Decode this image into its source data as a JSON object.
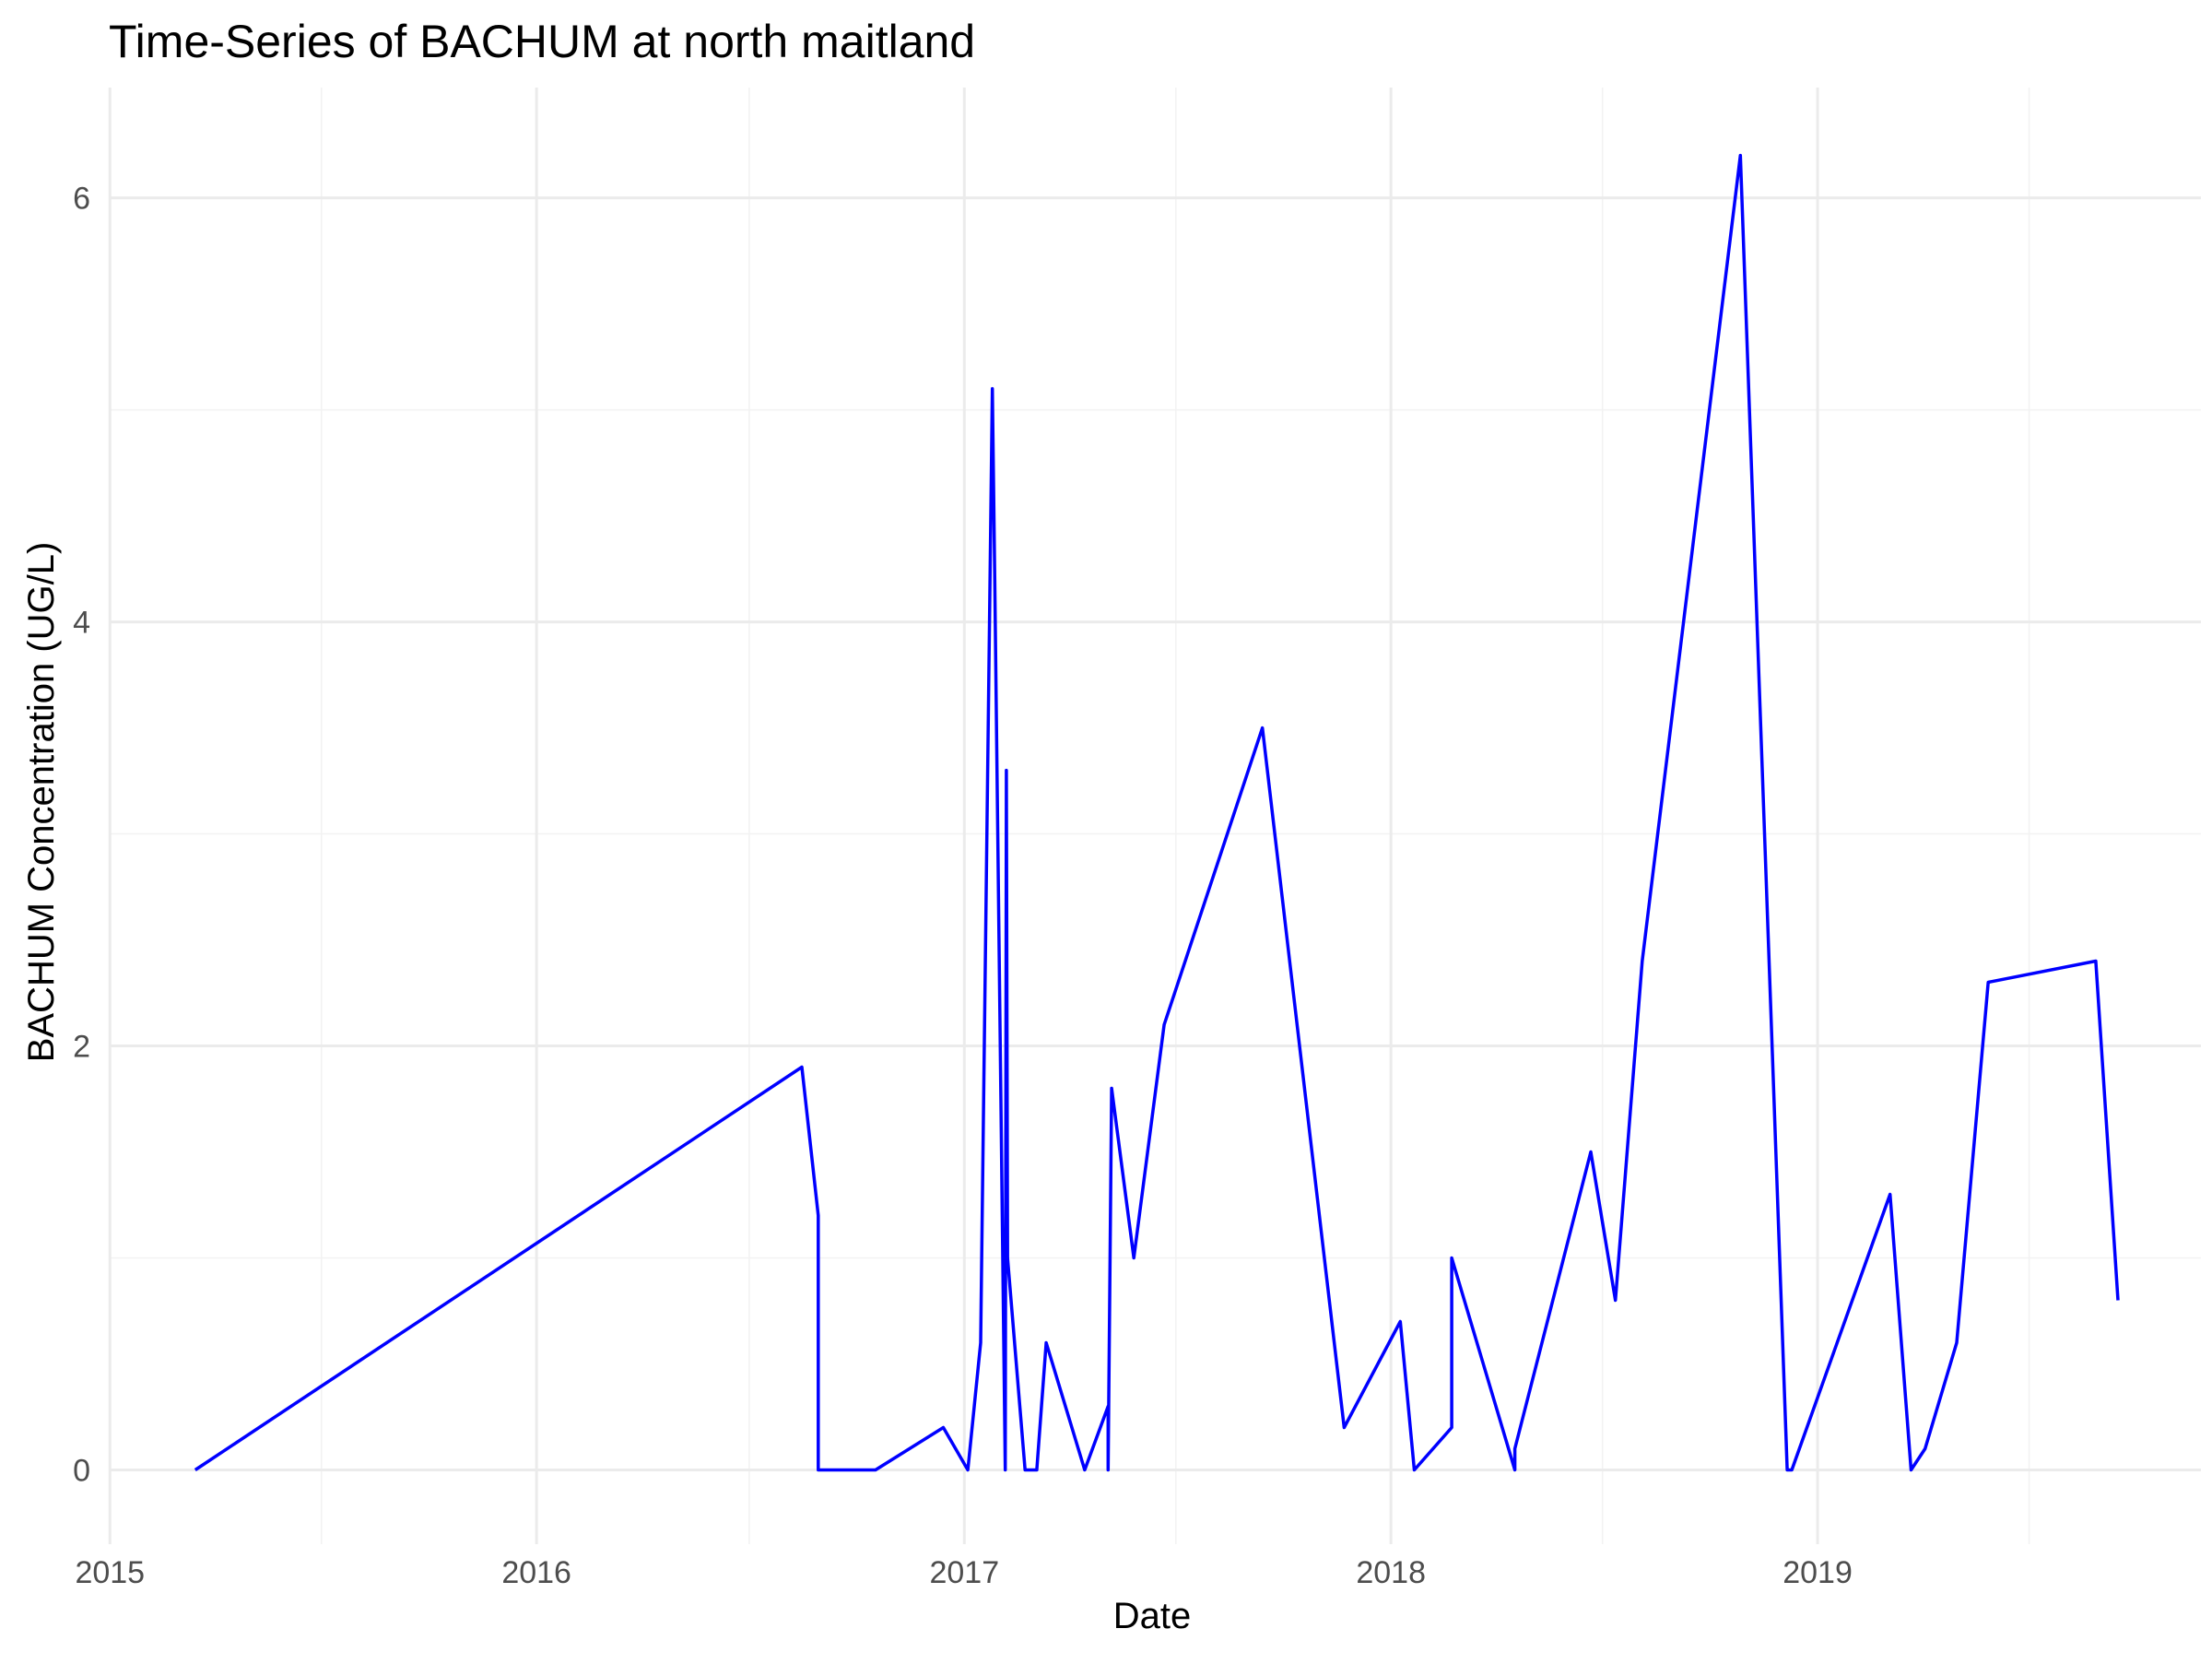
{
  "chart_data": {
    "type": "line",
    "title": "Time-Series of BACHUM at north maitland",
    "xlabel": "Date",
    "ylabel": "BACHUM Concentration (UG/L)",
    "x_ticks": [
      "2015",
      "2016",
      "2017",
      "2018",
      "2019"
    ],
    "y_ticks": [
      "0",
      "2",
      "4",
      "6"
    ],
    "xlim": [
      "2014-12-31",
      "2019-11-25"
    ],
    "ylim": [
      -0.35,
      6.52
    ],
    "grid": true,
    "series_color": "#0000ff",
    "series": [
      {
        "x": [
          "2015-03-15",
          "2016-08-15",
          "2016-08-29",
          "2016-08-29",
          "2016-10-17",
          "2016-12-14",
          "2017-01-04",
          "2017-01-15",
          "2017-01-25",
          "2017-01-27",
          "2017-02-05",
          "2017-02-06",
          "2017-02-07",
          "2017-02-22",
          "2017-03-04",
          "2017-03-12",
          "2017-04-14",
          "2017-05-04",
          "2017-05-04",
          "2017-05-07",
          "2017-05-26",
          "2017-06-21",
          "2017-09-13",
          "2017-11-22",
          "2018-01-09",
          "2018-01-21",
          "2018-02-22",
          "2018-02-22",
          "2018-04-17",
          "2018-04-17",
          "2018-06-21",
          "2018-07-12",
          "2018-08-04",
          "2018-10-27",
          "2018-12-06",
          "2018-12-10",
          "2019-03-04",
          "2019-03-22",
          "2019-04-03",
          "2019-04-30",
          "2019-05-27",
          "2019-08-27",
          "2019-09-15"
        ],
        "y": [
          0.0,
          1.9,
          1.2,
          0.0,
          0.0,
          0.2,
          0.0,
          0.6,
          5.1,
          4.2,
          0.0,
          3.3,
          1.0,
          0.0,
          0.0,
          0.6,
          0.0,
          0.3,
          0.0,
          1.8,
          1.0,
          2.1,
          3.5,
          0.2,
          0.7,
          0.0,
          0.2,
          1.0,
          0.0,
          0.1,
          1.5,
          0.8,
          2.4,
          6.2,
          0.0,
          0.0,
          1.3,
          0.0,
          0.1,
          0.6,
          2.3,
          2.4,
          0.8
        ]
      }
    ]
  }
}
